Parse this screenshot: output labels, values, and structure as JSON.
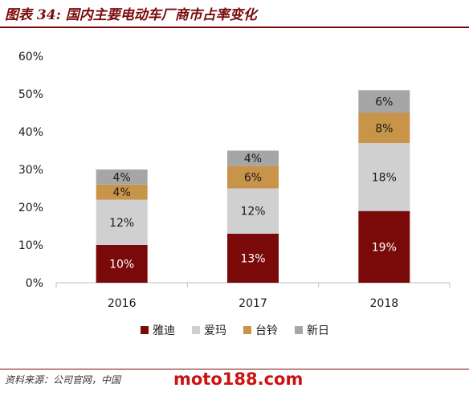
{
  "figure": {
    "title": "图表 34: 国内主要电动车厂商市占率变化",
    "source": "资料来源：公司官网，中国",
    "watermark": "moto188.com"
  },
  "colors": {
    "title": "#7a0a0a",
    "series": [
      "#7a0a0a",
      "#d0d0d0",
      "#c8944a",
      "#a6a6a6"
    ]
  },
  "chart_data": {
    "type": "bar",
    "stacked": true,
    "categories": [
      "2016",
      "2017",
      "2018"
    ],
    "series": [
      {
        "name": "雅迪",
        "values": [
          10,
          13,
          19
        ],
        "labels": [
          "10%",
          "13%",
          "19%"
        ]
      },
      {
        "name": "爱玛",
        "values": [
          12,
          12,
          18
        ],
        "labels": [
          "12%",
          "12%",
          "18%"
        ]
      },
      {
        "name": "台铃",
        "values": [
          4,
          6,
          8
        ],
        "labels": [
          "4%",
          "6%",
          "8%"
        ]
      },
      {
        "name": "新日",
        "values": [
          4,
          4,
          6
        ],
        "labels": [
          "4%",
          "4%",
          "6%"
        ]
      }
    ],
    "ylim": [
      0,
      60
    ],
    "yticks": [
      "0%",
      "10%",
      "20%",
      "30%",
      "40%",
      "50%",
      "60%"
    ],
    "xlabel": "",
    "ylabel": "",
    "legend_position": "bottom",
    "grid": false
  }
}
